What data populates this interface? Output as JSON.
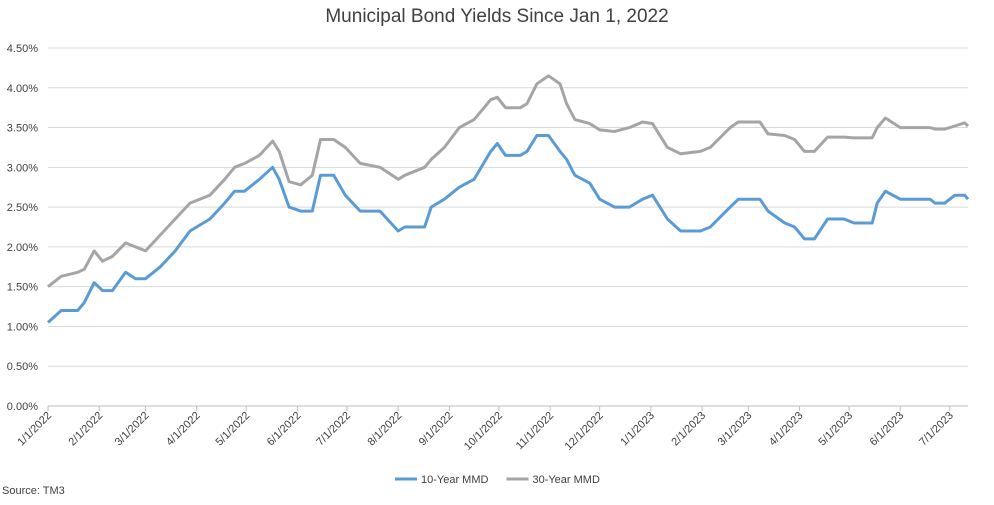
{
  "chart_data": {
    "type": "line",
    "title": "Municipal Bond Yields Since Jan 1, 2022",
    "source": "Source: TM3",
    "x": [
      "1/1/2022",
      "1/9/2022",
      "1/19/2022",
      "1/23/2022",
      "1/29/2022",
      "2/3/2022",
      "2/9/2022",
      "2/17/2022",
      "2/23/2022",
      "3/1/2022",
      "3/10/2022",
      "3/19/2022",
      "3/28/2022",
      "4/9/2022",
      "4/18/2022",
      "4/24/2022",
      "4/30/2022",
      "5/9/2022",
      "5/17/2022",
      "5/21/2022",
      "5/27/2022",
      "6/3/2022",
      "6/10/2022",
      "6/15/2022",
      "6/23/2022",
      "6/30/2022",
      "7/9/2022",
      "7/21/2022",
      "8/1/2022",
      "8/5/2022",
      "8/17/2022",
      "8/21/2022",
      "8/29/2022",
      "9/7/2022",
      "9/16/2022",
      "9/26/2022",
      "9/30/2022",
      "10/5/2022",
      "10/14/2022",
      "10/18/2022",
      "10/24/2022",
      "10/31/2022",
      "11/7/2022",
      "11/11/2022",
      "11/16/2022",
      "11/25/2022",
      "12/1/2022",
      "12/10/2022",
      "12/19/2022",
      "12/27/2022",
      "1/2/2023",
      "1/11/2023",
      "1/19/2023",
      "1/31/2023",
      "2/6/2023",
      "2/18/2023",
      "2/23/2023",
      "3/8/2023",
      "3/13/2023",
      "3/23/2023",
      "3/29/2023",
      "4/4/2023",
      "4/10/2023",
      "4/18/2023",
      "4/28/2023",
      "5/4/2023",
      "5/15/2023",
      "5/18/2023",
      "5/23/2023",
      "6/1/2023",
      "6/19/2023",
      "6/22/2023",
      "6/28/2023",
      "7/4/2023",
      "7/10/2023",
      "7/12/2023"
    ],
    "series": [
      {
        "name": "10-Year MMD",
        "color": "#5b9bd5",
        "values": [
          1.05,
          1.2,
          1.2,
          1.3,
          1.55,
          1.45,
          1.45,
          1.68,
          1.6,
          1.6,
          1.75,
          1.95,
          2.2,
          2.35,
          2.55,
          2.7,
          2.7,
          2.85,
          3.0,
          2.85,
          2.5,
          2.45,
          2.45,
          2.9,
          2.9,
          2.65,
          2.45,
          2.45,
          2.2,
          2.25,
          2.25,
          2.5,
          2.6,
          2.75,
          2.85,
          3.2,
          3.3,
          3.15,
          3.15,
          3.2,
          3.4,
          3.4,
          3.2,
          3.1,
          2.9,
          2.8,
          2.6,
          2.5,
          2.5,
          2.6,
          2.65,
          2.35,
          2.2,
          2.2,
          2.25,
          2.5,
          2.6,
          2.6,
          2.45,
          2.3,
          2.25,
          2.1,
          2.1,
          2.35,
          2.35,
          2.3,
          2.3,
          2.55,
          2.7,
          2.6,
          2.6,
          2.55,
          2.55,
          2.65,
          2.65,
          2.6
        ]
      },
      {
        "name": "30-Year MMD",
        "color": "#a5a5a5",
        "values": [
          1.5,
          1.63,
          1.68,
          1.72,
          1.95,
          1.82,
          1.88,
          2.05,
          2.0,
          1.95,
          2.15,
          2.35,
          2.55,
          2.65,
          2.85,
          3.0,
          3.05,
          3.15,
          3.33,
          3.2,
          2.82,
          2.78,
          2.9,
          3.35,
          3.35,
          3.25,
          3.05,
          3.0,
          2.85,
          2.9,
          3.0,
          3.1,
          3.25,
          3.5,
          3.6,
          3.85,
          3.88,
          3.75,
          3.75,
          3.8,
          4.05,
          4.15,
          4.05,
          3.8,
          3.6,
          3.55,
          3.47,
          3.45,
          3.5,
          3.57,
          3.55,
          3.25,
          3.17,
          3.2,
          3.25,
          3.5,
          3.57,
          3.57,
          3.42,
          3.4,
          3.35,
          3.2,
          3.2,
          3.38,
          3.38,
          3.37,
          3.37,
          3.5,
          3.62,
          3.5,
          3.5,
          3.48,
          3.48,
          3.52,
          3.56,
          3.52
        ]
      }
    ],
    "xlim": [
      "1/1/2022",
      "7/12/2023"
    ],
    "xticks": [
      "1/1/2022",
      "2/1/2022",
      "3/1/2022",
      "4/1/2022",
      "5/1/2022",
      "6/1/2022",
      "7/1/2022",
      "8/1/2022",
      "9/1/2022",
      "10/1/2022",
      "11/1/2022",
      "12/1/2022",
      "1/1/2023",
      "2/1/2023",
      "3/1/2023",
      "4/1/2023",
      "5/1/2023",
      "6/1/2023",
      "7/1/2023"
    ],
    "ylim": [
      0,
      4.5
    ],
    "yticks": [
      {
        "value": 0,
        "label": "0.00%"
      },
      {
        "value": 0.5,
        "label": "0.50%"
      },
      {
        "value": 1,
        "label": "1.00%"
      },
      {
        "value": 1.5,
        "label": "1.50%"
      },
      {
        "value": 2,
        "label": "2.00%"
      },
      {
        "value": 2.5,
        "label": "2.50%"
      },
      {
        "value": 3,
        "label": "3.00%"
      },
      {
        "value": 3.5,
        "label": "3.50%"
      },
      {
        "value": 4,
        "label": "4.00%"
      },
      {
        "value": 4.5,
        "label": "4.50%"
      }
    ],
    "grid": true,
    "legend": "bottom"
  }
}
